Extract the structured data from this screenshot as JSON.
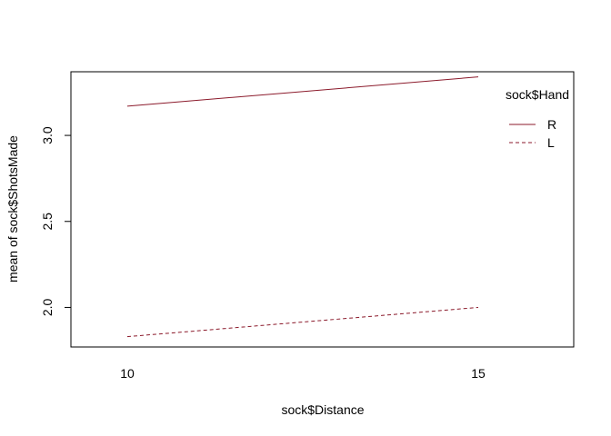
{
  "chart_data": {
    "type": "line",
    "title": "",
    "xlabel": "sock$Distance",
    "ylabel": "mean of  sock$ShotsMade",
    "categories": [
      "10",
      "15"
    ],
    "x": [
      10,
      15
    ],
    "ylim": [
      1.77,
      3.37
    ],
    "yticks": [
      2.0,
      2.5,
      3.0
    ],
    "yticklabels": [
      "2.0",
      "2.5",
      "3.0"
    ],
    "grid": false,
    "legend": {
      "title": "sock$Hand",
      "placement": "top-right",
      "entries": [
        "R",
        "L"
      ]
    },
    "series": [
      {
        "name": "R",
        "values": [
          3.17,
          3.34
        ],
        "color": "#8B1A2B",
        "dash": "solid"
      },
      {
        "name": "L",
        "values": [
          1.83,
          2.0
        ],
        "color": "#8B1A2B",
        "dash": "dashed"
      }
    ]
  }
}
